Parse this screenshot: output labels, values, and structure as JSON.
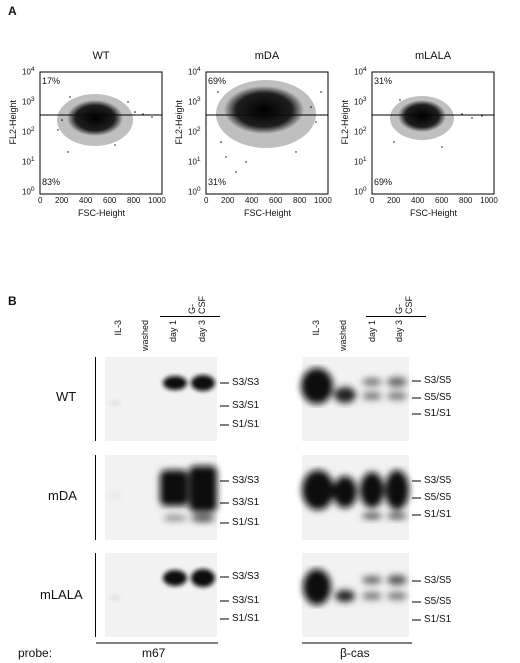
{
  "panelA": {
    "label": "A",
    "plots": [
      {
        "title": "WT",
        "upper_pct": "17%",
        "lower_pct": "83%"
      },
      {
        "title": "mDA",
        "upper_pct": "69%",
        "lower_pct": "31%"
      },
      {
        "title": "mLALA",
        "upper_pct": "31%",
        "lower_pct": "69%"
      }
    ],
    "ylabel": "FL2-Height",
    "xlabel": "FSC-Height",
    "x_ticks": [
      "0",
      "200",
      "400",
      "600",
      "800",
      "1000"
    ],
    "y_ticks": [
      "10",
      "10",
      "10",
      "10",
      "10"
    ],
    "y_exps": [
      "0",
      "1",
      "2",
      "3",
      "4"
    ]
  },
  "panelB": {
    "label": "B",
    "treatment_header": "G-CSF",
    "lanes": [
      "IL-3",
      "washed",
      "day 1",
      "day 3"
    ],
    "rows": [
      "WT",
      "mDA",
      "mLALA"
    ],
    "left_bands": [
      "S3/S3",
      "S3/S1",
      "S1/S1"
    ],
    "right_bands": [
      "S3/S5",
      "S5/S5",
      "S1/S1"
    ],
    "probe_label": "probe:",
    "left_probe": "m67",
    "right_probe": "β-cas"
  }
}
